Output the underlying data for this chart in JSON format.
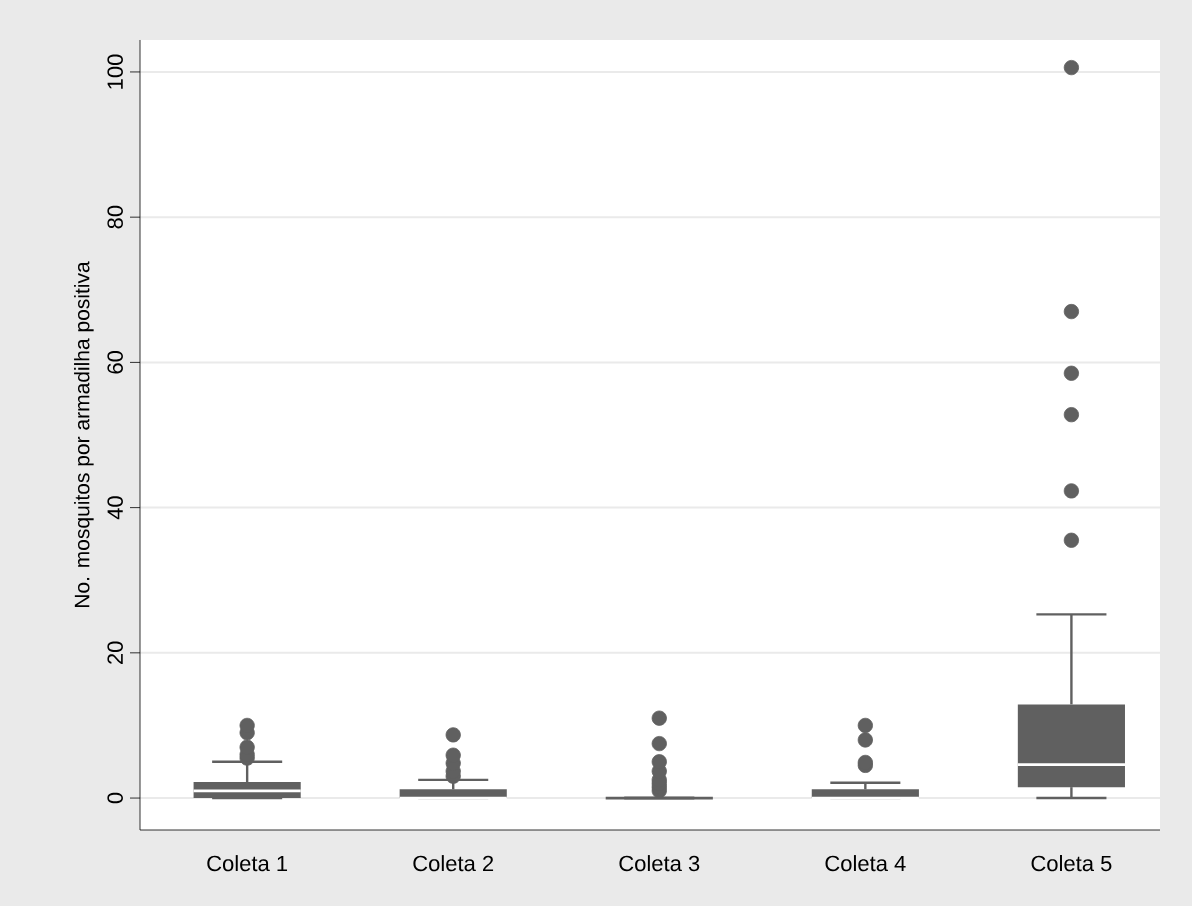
{
  "chart_data": {
    "type": "box",
    "ylabel": "No. mosquitos por armadilha positiva",
    "categories": [
      "Coleta 1",
      "Coleta 2",
      "Coleta 3",
      "Coleta 4",
      "Coleta 5"
    ],
    "series": [
      {
        "color": "#606060",
        "boxes": [
          {
            "low": 0,
            "q1": 0,
            "median": 1,
            "q3": 2.2,
            "high": 5,
            "outliers": [
              5.5,
              6,
              7,
              9,
              10
            ]
          },
          {
            "low": 0,
            "q1": 0,
            "median": 0,
            "q3": 1.2,
            "high": 2.5,
            "outliers": [
              3,
              3.7,
              4.8,
              5.9,
              8.7
            ]
          },
          {
            "low": 0,
            "q1": 0,
            "median": 0,
            "q3": 0,
            "high": 0,
            "outliers": [
              1,
              1.5,
              2,
              2.5,
              3.7,
              5,
              7.5,
              11
            ]
          },
          {
            "low": 0,
            "q1": 0,
            "median": 0,
            "q3": 1.2,
            "high": 2.1,
            "outliers": [
              4.5,
              4.9,
              8,
              10
            ]
          },
          {
            "low": 0,
            "q1": 1.5,
            "median": 4.6,
            "q3": 12.9,
            "high": 25.3,
            "outliers": [
              35.5,
              42.3,
              52.8,
              58.5,
              67,
              100.6
            ]
          }
        ]
      }
    ],
    "ylim": [
      -4.4,
      104.4
    ],
    "yticks": [
      0,
      20,
      40,
      60,
      80,
      100
    ],
    "grid": "y",
    "marker": "circle"
  }
}
